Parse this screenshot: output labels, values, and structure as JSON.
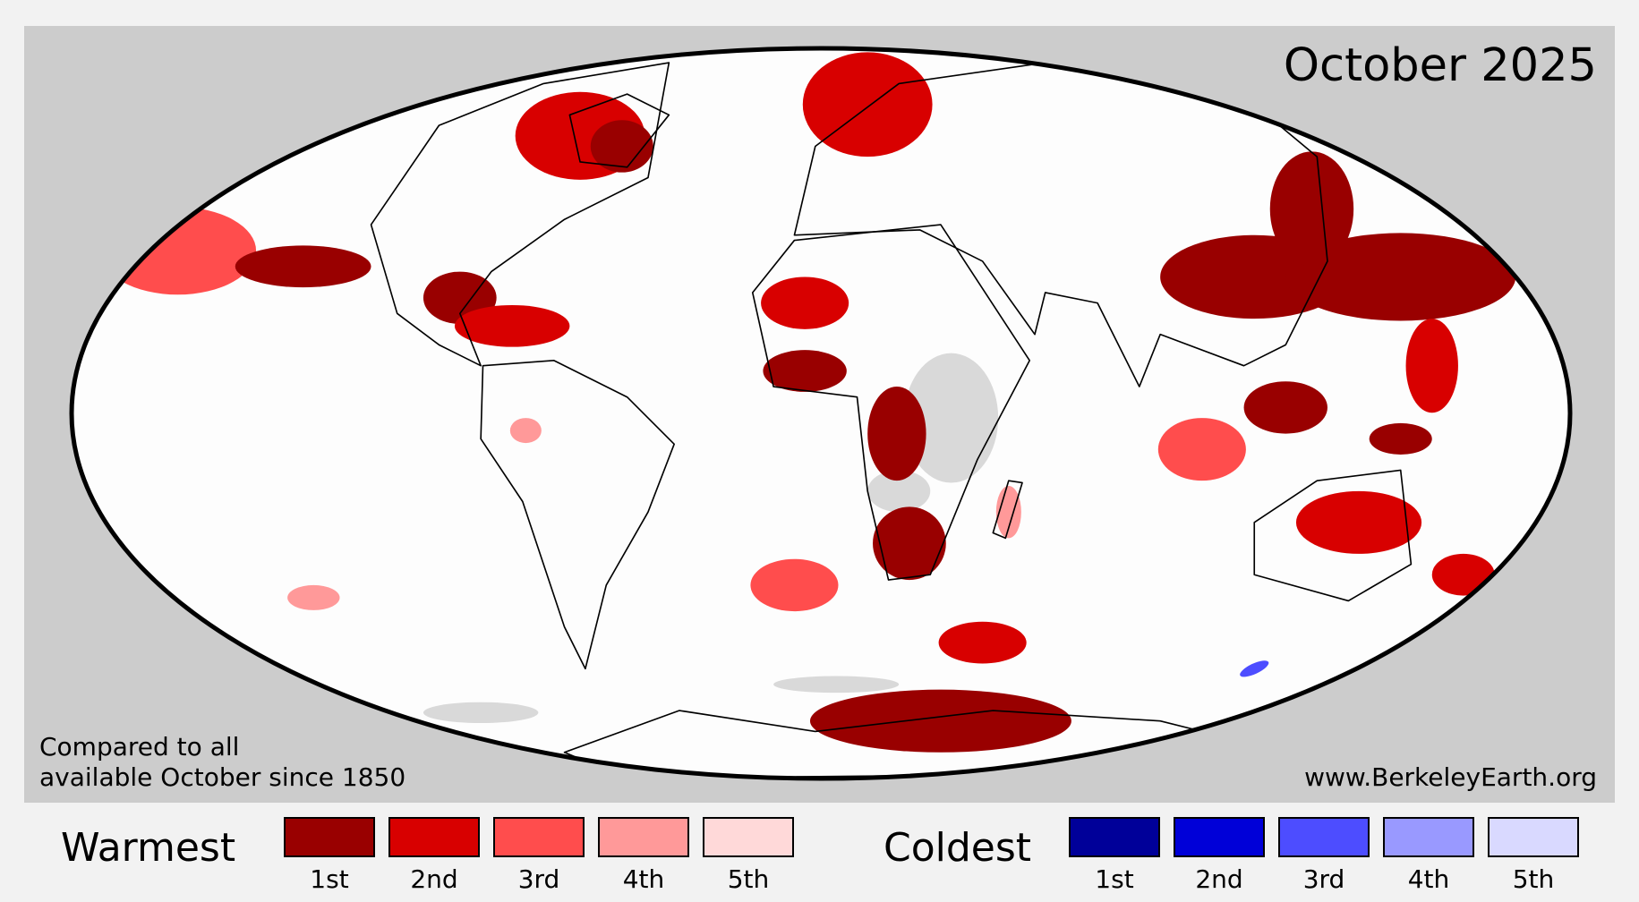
{
  "title": "October 2025",
  "note": [
    "Compared to all",
    "available October since 1850"
  ],
  "source": "www.BerkeleyEarth.org",
  "legend": {
    "warmest": {
      "label": "Warmest",
      "items": [
        {
          "label": "1st",
          "color": "#990000"
        },
        {
          "label": "2nd",
          "color": "#d80000"
        },
        {
          "label": "3rd",
          "color": "#ff4d4d"
        },
        {
          "label": "4th",
          "color": "#ff9999"
        },
        {
          "label": "5th",
          "color": "#ffd9d9"
        }
      ]
    },
    "coldest": {
      "label": "Coldest",
      "items": [
        {
          "label": "1st",
          "color": "#000099"
        },
        {
          "label": "2nd",
          "color": "#0000d8"
        },
        {
          "label": "3rd",
          "color": "#4d4dff"
        },
        {
          "label": "4th",
          "color": "#9999ff"
        },
        {
          "label": "5th",
          "color": "#d9d9ff"
        }
      ]
    }
  }
}
